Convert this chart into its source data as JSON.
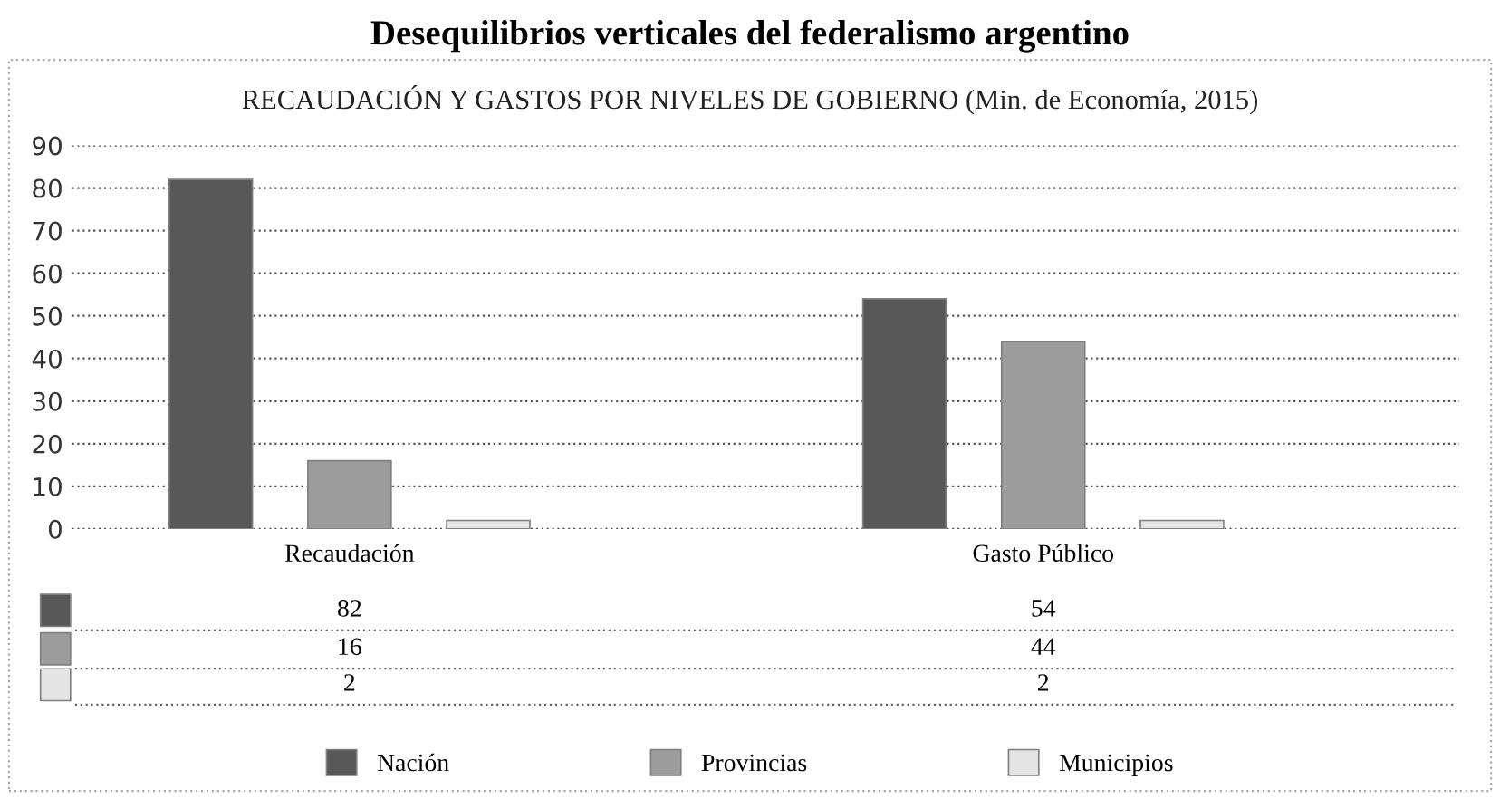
{
  "chart_data": {
    "type": "bar",
    "title": "Desequilibrios verticales del federalismo argentino",
    "subtitle": "RECAUDACIÓN Y GASTOS POR NIVELES DE GOBIERNO (Min. de Economía, 2015)",
    "categories": [
      "Recaudación",
      "Gasto Público"
    ],
    "series": [
      {
        "name": "Nación",
        "color": "#585858",
        "values": [
          82,
          54
        ]
      },
      {
        "name": "Provincias",
        "color": "#9c9c9c",
        "values": [
          16,
          44
        ]
      },
      {
        "name": "Municipios",
        "color": "#e4e4e4",
        "values": [
          2,
          2
        ]
      }
    ],
    "ylim": [
      0,
      90
    ],
    "yticks": [
      0,
      10,
      20,
      30,
      40,
      50,
      60,
      70,
      80,
      90
    ],
    "grid": "y",
    "legend": "bottom",
    "data_labels": true
  }
}
